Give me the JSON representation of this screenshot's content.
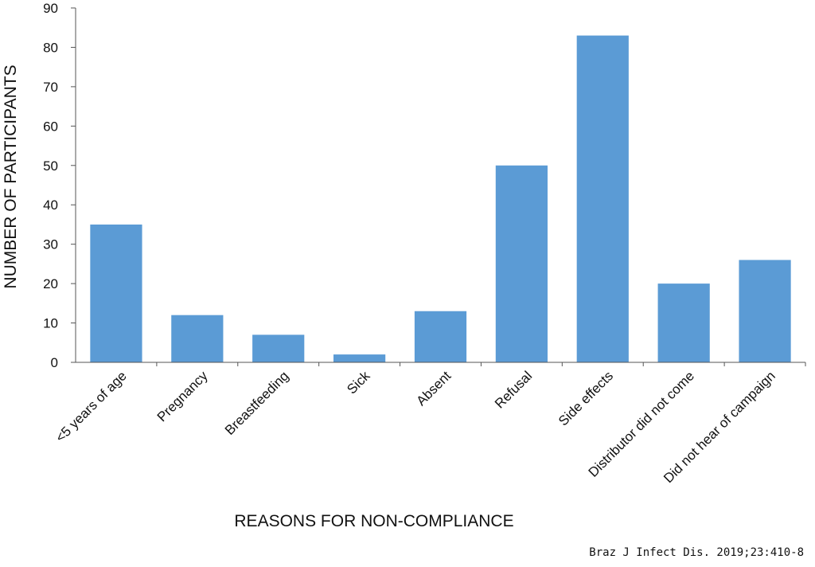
{
  "chart_data": {
    "type": "bar",
    "title": "",
    "xlabel": "REASONS FOR NON-COMPLIANCE",
    "ylabel": "NUMBER OF PARTICIPANTS",
    "categories": [
      "<5 years of age",
      "Pregnancy",
      "Breastfeeding",
      "Sick",
      "Absent",
      "Refusal",
      "Side effects",
      "Distributor did not come",
      "Did not hear of campaign"
    ],
    "values": [
      35,
      12,
      7,
      2,
      13,
      50,
      83,
      20,
      26
    ],
    "ylim": [
      0,
      90
    ],
    "yticks": [
      0,
      10,
      20,
      30,
      40,
      50,
      60,
      70,
      80,
      90
    ],
    "grid": false,
    "legend": "none",
    "bar_color": "#5b9bd5"
  },
  "citation": "Braz J Infect Dis. 2019;23:410-8"
}
